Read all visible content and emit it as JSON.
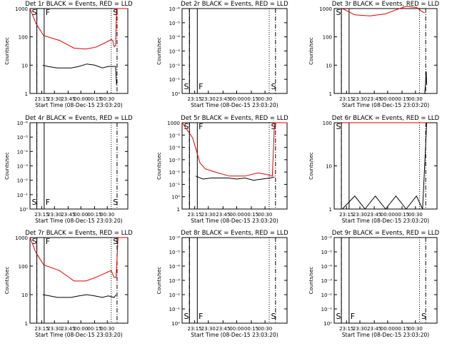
{
  "chart_data": [
    {
      "type": "line",
      "title": "Det 1r BLACK = Events, RED = LLD",
      "xlabel": "Start Time (08-Dec-15 23:03:20)",
      "ylabel": "Counts/sec",
      "yscale": "log",
      "ylim": [
        1,
        1000
      ],
      "yticks": [
        "1",
        "10",
        "100",
        "1000"
      ],
      "xticks": [
        "23:15",
        "23:30",
        "23:45",
        "00:00",
        "00:15",
        "00:30"
      ],
      "markers": [
        "S",
        "F",
        "S"
      ],
      "series": [
        {
          "color": "red",
          "x": [
            0,
            0.06,
            0.14,
            0.3,
            0.45,
            0.57,
            0.67,
            0.76,
            0.83,
            0.845,
            0.86,
            0.875,
            0.885,
            0.9,
            1
          ],
          "y": [
            1000,
            300,
            110,
            75,
            40,
            37,
            43,
            60,
            80,
            75,
            45,
            50,
            1000,
            1000,
            1000
          ]
        },
        {
          "color": "black",
          "x": [
            0.13,
            0.18,
            0.28,
            0.35,
            0.42,
            0.5,
            0.58,
            0.66,
            0.74,
            0.8,
            0.86,
            0.875,
            0.885
          ],
          "y": [
            10,
            9,
            8,
            8,
            8,
            9,
            11,
            10,
            8,
            9,
            9,
            9,
            2
          ]
        }
      ]
    },
    {
      "type": "line",
      "title": "Det 2r BLACK = Events, RED = LLD",
      "xlabel": "Start Time (08-Dec-15 23:03:20)",
      "ylabel": "Counts/sec",
      "yscale": "log",
      "ylim": [
        1,
        1000000
      ],
      "yticks": [
        "10⁰",
        "10⁻¹",
        "10⁻²",
        "10⁻³",
        "10⁻⁴",
        "10⁻⁵",
        "10⁻⁶"
      ],
      "xticks": [
        "23:15",
        "23:30",
        "23:45",
        "00:00",
        "00:15",
        "00:30"
      ],
      "markers": [
        "S",
        "F",
        "S"
      ],
      "series": []
    },
    {
      "type": "line",
      "title": "Det 3r BLACK = Events, RED = LLD",
      "xlabel": "Start Time (08-Dec-15 23:03:20)",
      "ylabel": "Counts/sec",
      "yscale": "log",
      "ylim": [
        1,
        1000
      ],
      "yticks": [
        "1",
        "10",
        "100",
        "1000"
      ],
      "xticks": [
        "23:15",
        "23:30",
        "23:45",
        "00:00",
        "00:15",
        "00:30"
      ],
      "markers": [
        "S"
      ],
      "series": [
        {
          "color": "red",
          "x": [
            0.08,
            0.2,
            0.35,
            0.5,
            0.6,
            0.7,
            0.8,
            0.85,
            0.88
          ],
          "y": [
            1000,
            600,
            550,
            650,
            900,
            1200,
            1100,
            800,
            700
          ]
        },
        {
          "color": "black",
          "x": [
            0.88,
            0.885,
            0.89,
            0.895,
            0.9
          ],
          "y": [
            1,
            1.5,
            3,
            6,
            2
          ]
        }
      ]
    },
    {
      "type": "line",
      "title": "Det 4r BLACK = Events, RED = LLD",
      "xlabel": "Start Time (08-Dec-15 23:03:20)",
      "ylabel": "Counts/sec",
      "yscale": "log",
      "ylim": [
        1,
        1000000
      ],
      "yticks": [
        "10⁰",
        "10⁻¹",
        "10⁻²",
        "10⁻³",
        "10⁻⁴",
        "10⁻⁵",
        "10⁻⁶"
      ],
      "xticks": [
        "23:15",
        "23:30",
        "23:45",
        "00:00",
        "00:15",
        "00:30"
      ],
      "markers": [
        "S",
        "F",
        "S"
      ],
      "series": []
    },
    {
      "type": "line",
      "title": "Det 5r BLACK = Events, RED = LLD",
      "xlabel": "Start Time (08-Dec-15 23:03:20)",
      "ylabel": "Counts/sec",
      "yscale": "log",
      "ylim": [
        1,
        1000
      ],
      "yticks": [
        "1",
        "10⁰",
        "10⁻¹",
        "10⁻²",
        "10⁻³",
        "10⁻⁴",
        "10⁻⁵",
        "1000"
      ],
      "xticks": [
        "23:15",
        "23:30",
        "23:45",
        "00:00",
        "00:15",
        "00:30"
      ],
      "markers": [
        "S",
        "F",
        "S"
      ],
      "series": [
        {
          "color": "red",
          "x": [
            0,
            0.1,
            0.17,
            0.22,
            0.3,
            0.45,
            0.6,
            0.72,
            0.8,
            0.86,
            0.88,
            1
          ],
          "y": [
            1000,
            300,
            40,
            25,
            20,
            14,
            14,
            18,
            16,
            14,
            1000,
            1000
          ]
        },
        {
          "color": "black",
          "x": [
            0.13,
            0.2,
            0.28,
            0.36,
            0.44,
            0.52,
            0.6,
            0.68,
            0.76,
            0.84,
            0.88
          ],
          "y": [
            14,
            11,
            12,
            12,
            12,
            11,
            12,
            10,
            11,
            12,
            13
          ]
        }
      ]
    },
    {
      "type": "line",
      "title": "Det 6r BLACK = Events, RED = LLD",
      "xlabel": "Start Time (08-Dec-15 23:03:20)",
      "ylabel": "Counts/sec",
      "yscale": "log",
      "ylim": [
        1,
        100
      ],
      "yticks": [
        "1",
        "10",
        "100"
      ],
      "xticks": [
        "23:15",
        "23:30",
        "23:45",
        "00:00",
        "00:15",
        "00:30"
      ],
      "markers": [
        "S"
      ],
      "series": [
        {
          "color": "red",
          "x": [
            0.08,
            0.3,
            0.5,
            0.7,
            0.86,
            0.9
          ],
          "y": [
            100,
            100,
            100,
            100,
            100,
            100
          ]
        },
        {
          "color": "black",
          "x": [
            0.08,
            0.2,
            0.3,
            0.4,
            0.5,
            0.6,
            0.7,
            0.8,
            0.86,
            0.88,
            0.9
          ],
          "y": [
            1,
            2,
            1,
            2,
            1,
            2,
            1,
            2,
            1,
            10,
            100
          ]
        }
      ]
    },
    {
      "type": "line",
      "title": "Det 7r BLACK = Events, RED = LLD",
      "xlabel": "Start Time (08-Dec-15 23:03:20)",
      "ylabel": "Counts/sec",
      "yscale": "log",
      "ylim": [
        1,
        1000
      ],
      "yticks": [
        "1",
        "10",
        "100",
        "1000"
      ],
      "xticks": [
        "23:15",
        "23:30",
        "23:45",
        "00:00",
        "00:15",
        "00:30"
      ],
      "markers": [
        "S",
        "F",
        "S"
      ],
      "series": [
        {
          "color": "red",
          "x": [
            0,
            0.06,
            0.14,
            0.3,
            0.45,
            0.57,
            0.67,
            0.76,
            0.83,
            0.86,
            0.88,
            0.9,
            1
          ],
          "y": [
            1000,
            300,
            110,
            70,
            30,
            30,
            40,
            55,
            70,
            40,
            40,
            1000,
            1000
          ]
        },
        {
          "color": "black",
          "x": [
            0.13,
            0.2,
            0.28,
            0.35,
            0.42,
            0.5,
            0.58,
            0.66,
            0.74,
            0.8,
            0.86,
            0.88
          ],
          "y": [
            10,
            9,
            8,
            8,
            8,
            9,
            10,
            9,
            8,
            9,
            8,
            10
          ]
        }
      ]
    },
    {
      "type": "line",
      "title": "Det 8r BLACK = Events, RED = LLD",
      "xlabel": "Start Time (08-Dec-15 23:03:20)",
      "ylabel": "Counts/sec",
      "yscale": "log",
      "ylim": [
        1,
        1000000
      ],
      "yticks": [
        "10⁰",
        "10⁻¹",
        "10⁻²",
        "10⁻³",
        "10⁻⁴",
        "10⁻⁵",
        "10⁻⁶"
      ],
      "xticks": [
        "23:15",
        "23:30",
        "23:45",
        "00:00",
        "00:15",
        "00:30"
      ],
      "markers": [
        "S",
        "F",
        "S"
      ],
      "series": []
    },
    {
      "type": "line",
      "title": "Det 9r BLACK = Events, RED = LLD",
      "xlabel": "Start Time (08-Dec-15 23:03:20)",
      "ylabel": "Counts/sec",
      "yscale": "log",
      "ylim": [
        1,
        1000000
      ],
      "yticks": [
        "10⁰",
        "10⁻¹",
        "10⁻²",
        "10⁻³",
        "10⁻⁴",
        "10⁻⁵",
        "10⁻⁶"
      ],
      "xticks": [
        "23:15",
        "23:30",
        "23:45",
        "00:00",
        "00:15",
        "00:30"
      ],
      "markers": [
        "S",
        "F",
        "S"
      ],
      "series": []
    }
  ],
  "colors": {
    "black": "#000000",
    "red": "#dd0000",
    "background": "#ffffff"
  }
}
